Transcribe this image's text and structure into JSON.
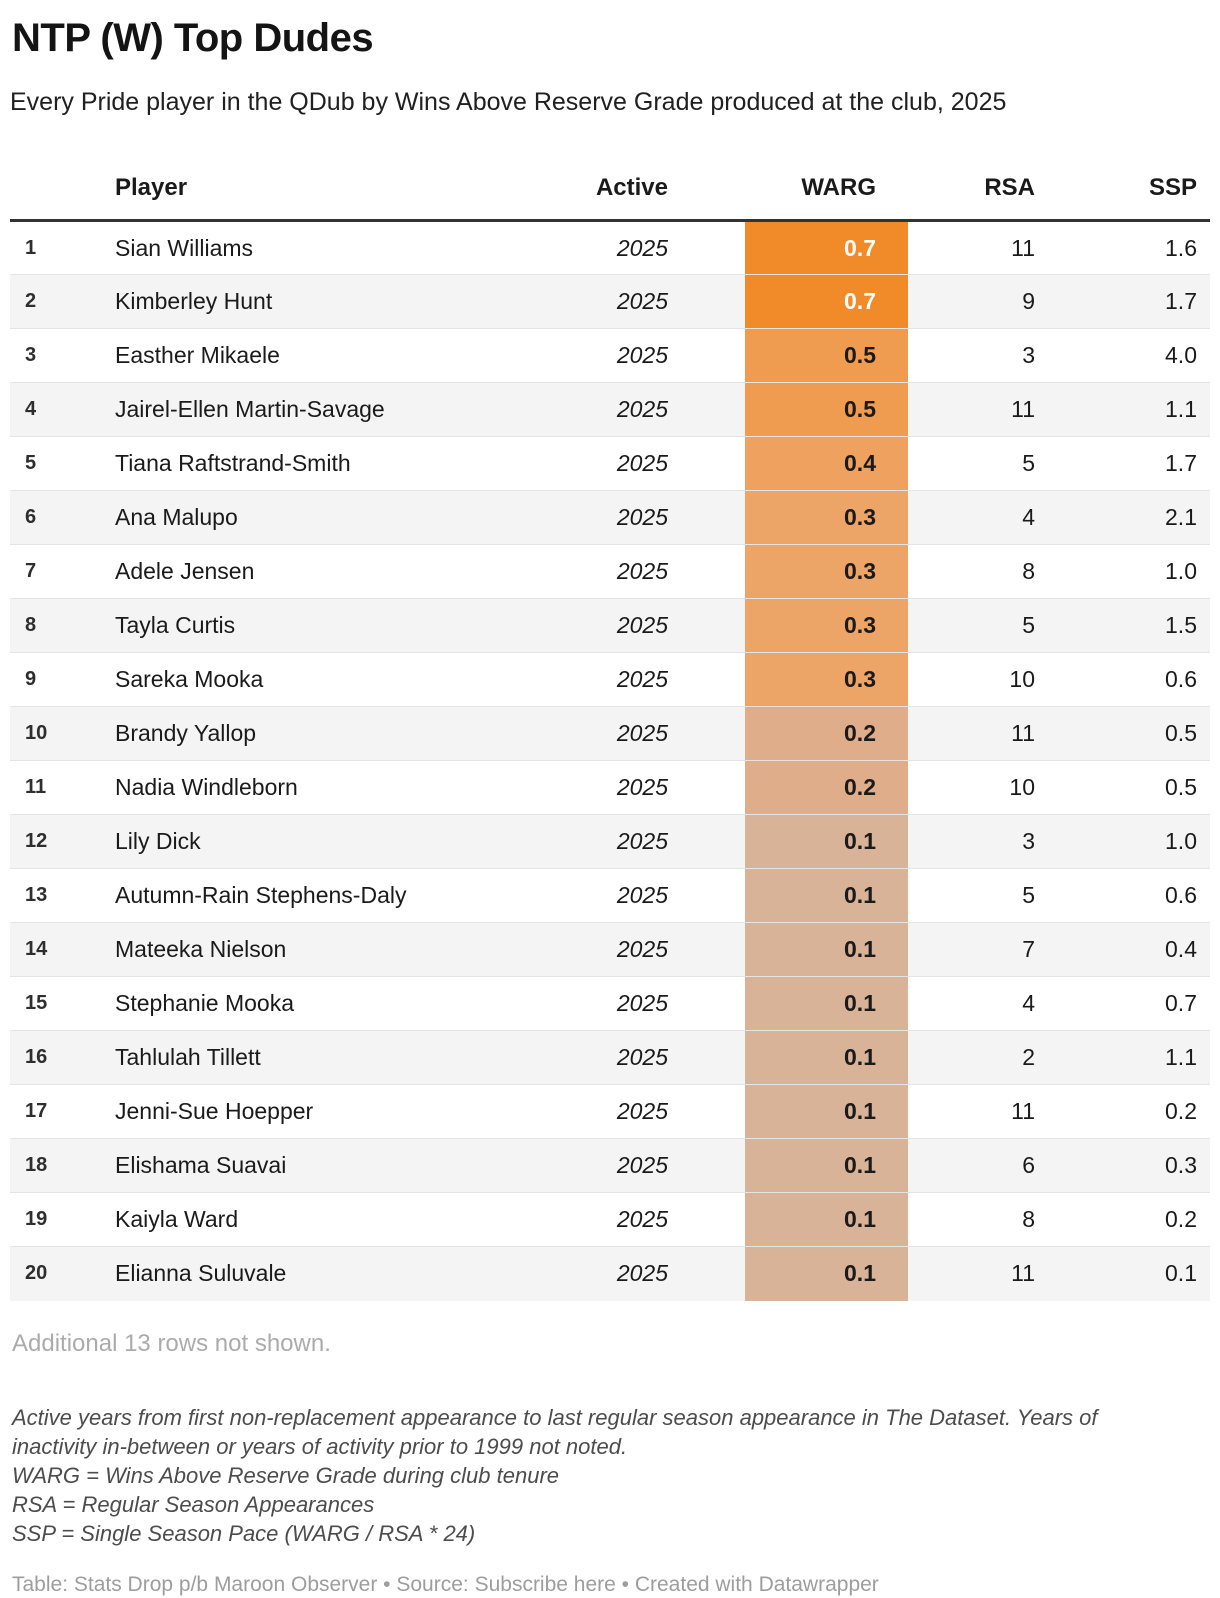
{
  "header": {
    "title": "NTP (W) Top Dudes",
    "subtitle": "Every Pride player in the QDub by Wins Above Reserve Grade produced at the club, 2025"
  },
  "chart_data": {
    "type": "table",
    "title": "NTP (W) Top Dudes",
    "subtitle": "Every Pride player in the QDub by Wins Above Reserve Grade produced at the club, 2025",
    "columns": [
      "Player",
      "Active",
      "WARG",
      "RSA",
      "SSP"
    ],
    "heatmap_column": "WARG",
    "heatmap_scale": {
      "high": "#f18a28",
      "low": "#d9b397"
    },
    "rows": [
      {
        "rank": "1",
        "player": "Sian Williams",
        "active": "2025",
        "warg": "0.7",
        "rsa": "11",
        "ssp": "1.6",
        "warg_bg": "#f18a28",
        "warg_text": "#ffffff"
      },
      {
        "rank": "2",
        "player": "Kimberley Hunt",
        "active": "2025",
        "warg": "0.7",
        "rsa": "9",
        "ssp": "1.7",
        "warg_bg": "#f18a28",
        "warg_text": "#ffffff"
      },
      {
        "rank": "3",
        "player": "Easther Mikaele",
        "active": "2025",
        "warg": "0.5",
        "rsa": "3",
        "ssp": "4.0",
        "warg_bg": "#f09c50",
        "warg_text": "#1a1a1a"
      },
      {
        "rank": "4",
        "player": "Jairel-Ellen Martin-Savage",
        "active": "2025",
        "warg": "0.5",
        "rsa": "11",
        "ssp": "1.1",
        "warg_bg": "#f09c50",
        "warg_text": "#1a1a1a"
      },
      {
        "rank": "5",
        "player": "Tiana Raftstrand-Smith",
        "active": "2025",
        "warg": "0.4",
        "rsa": "5",
        "ssp": "1.7",
        "warg_bg": "#efa25f",
        "warg_text": "#1a1a1a"
      },
      {
        "rank": "6",
        "player": "Ana Malupo",
        "active": "2025",
        "warg": "0.3",
        "rsa": "4",
        "ssp": "2.1",
        "warg_bg": "#eda567",
        "warg_text": "#1a1a1a"
      },
      {
        "rank": "7",
        "player": "Adele Jensen",
        "active": "2025",
        "warg": "0.3",
        "rsa": "8",
        "ssp": "1.0",
        "warg_bg": "#eda567",
        "warg_text": "#1a1a1a"
      },
      {
        "rank": "8",
        "player": "Tayla Curtis",
        "active": "2025",
        "warg": "0.3",
        "rsa": "5",
        "ssp": "1.5",
        "warg_bg": "#eda567",
        "warg_text": "#1a1a1a"
      },
      {
        "rank": "9",
        "player": "Sareka Mooka",
        "active": "2025",
        "warg": "0.3",
        "rsa": "10",
        "ssp": "0.6",
        "warg_bg": "#eda567",
        "warg_text": "#1a1a1a"
      },
      {
        "rank": "10",
        "player": "Brandy Yallop",
        "active": "2025",
        "warg": "0.2",
        "rsa": "11",
        "ssp": "0.5",
        "warg_bg": "#dfad8a",
        "warg_text": "#1a1a1a"
      },
      {
        "rank": "11",
        "player": "Nadia Windleborn",
        "active": "2025",
        "warg": "0.2",
        "rsa": "10",
        "ssp": "0.5",
        "warg_bg": "#dfad8a",
        "warg_text": "#1a1a1a"
      },
      {
        "rank": "12",
        "player": "Lily Dick",
        "active": "2025",
        "warg": "0.1",
        "rsa": "3",
        "ssp": "1.0",
        "warg_bg": "#d9b397",
        "warg_text": "#1a1a1a"
      },
      {
        "rank": "13",
        "player": "Autumn-Rain Stephens-Daly",
        "active": "2025",
        "warg": "0.1",
        "rsa": "5",
        "ssp": "0.6",
        "warg_bg": "#d9b397",
        "warg_text": "#1a1a1a"
      },
      {
        "rank": "14",
        "player": "Mateeka Nielson",
        "active": "2025",
        "warg": "0.1",
        "rsa": "7",
        "ssp": "0.4",
        "warg_bg": "#d9b397",
        "warg_text": "#1a1a1a"
      },
      {
        "rank": "15",
        "player": "Stephanie Mooka",
        "active": "2025",
        "warg": "0.1",
        "rsa": "4",
        "ssp": "0.7",
        "warg_bg": "#d9b397",
        "warg_text": "#1a1a1a"
      },
      {
        "rank": "16",
        "player": "Tahlulah Tillett",
        "active": "2025",
        "warg": "0.1",
        "rsa": "2",
        "ssp": "1.1",
        "warg_bg": "#d9b397",
        "warg_text": "#1a1a1a"
      },
      {
        "rank": "17",
        "player": "Jenni-Sue Hoepper",
        "active": "2025",
        "warg": "0.1",
        "rsa": "11",
        "ssp": "0.2",
        "warg_bg": "#d9b397",
        "warg_text": "#1a1a1a"
      },
      {
        "rank": "18",
        "player": "Elishama Suavai",
        "active": "2025",
        "warg": "0.1",
        "rsa": "6",
        "ssp": "0.3",
        "warg_bg": "#d9b397",
        "warg_text": "#1a1a1a"
      },
      {
        "rank": "19",
        "player": "Kaiyla Ward",
        "active": "2025",
        "warg": "0.1",
        "rsa": "8",
        "ssp": "0.2",
        "warg_bg": "#d9b397",
        "warg_text": "#1a1a1a"
      },
      {
        "rank": "20",
        "player": "Elianna Suluvale",
        "active": "2025",
        "warg": "0.1",
        "rsa": "11",
        "ssp": "0.1",
        "warg_bg": "#d9b397",
        "warg_text": "#1a1a1a"
      }
    ]
  },
  "footer": {
    "more_rows": "Additional 13 rows not shown.",
    "notes": [
      "Active years from first non-replacement appearance to last regular season appearance in The Dataset. Years of inactivity in-between or years of activity prior to 1999 not noted.",
      "WARG = Wins Above Reserve Grade during club tenure",
      "RSA = Regular Season Appearances",
      "SSP = Single Season Pace (WARG / RSA * 24)"
    ],
    "credit": {
      "prefix": "Table: Stats Drop p/b Maroon Observer • Source: ",
      "link": "Subscribe here",
      "suffix": " • Created with Datawrapper"
    }
  },
  "colors": {
    "accent_orange": "#f18a28",
    "alt_row_bg": "#f4f4f4",
    "header_rule": "#333333",
    "row_rule": "#e4e4e4",
    "muted_text": "#ababab",
    "note_text": "#4c4c4c",
    "credit_text": "#9d9d9d"
  }
}
